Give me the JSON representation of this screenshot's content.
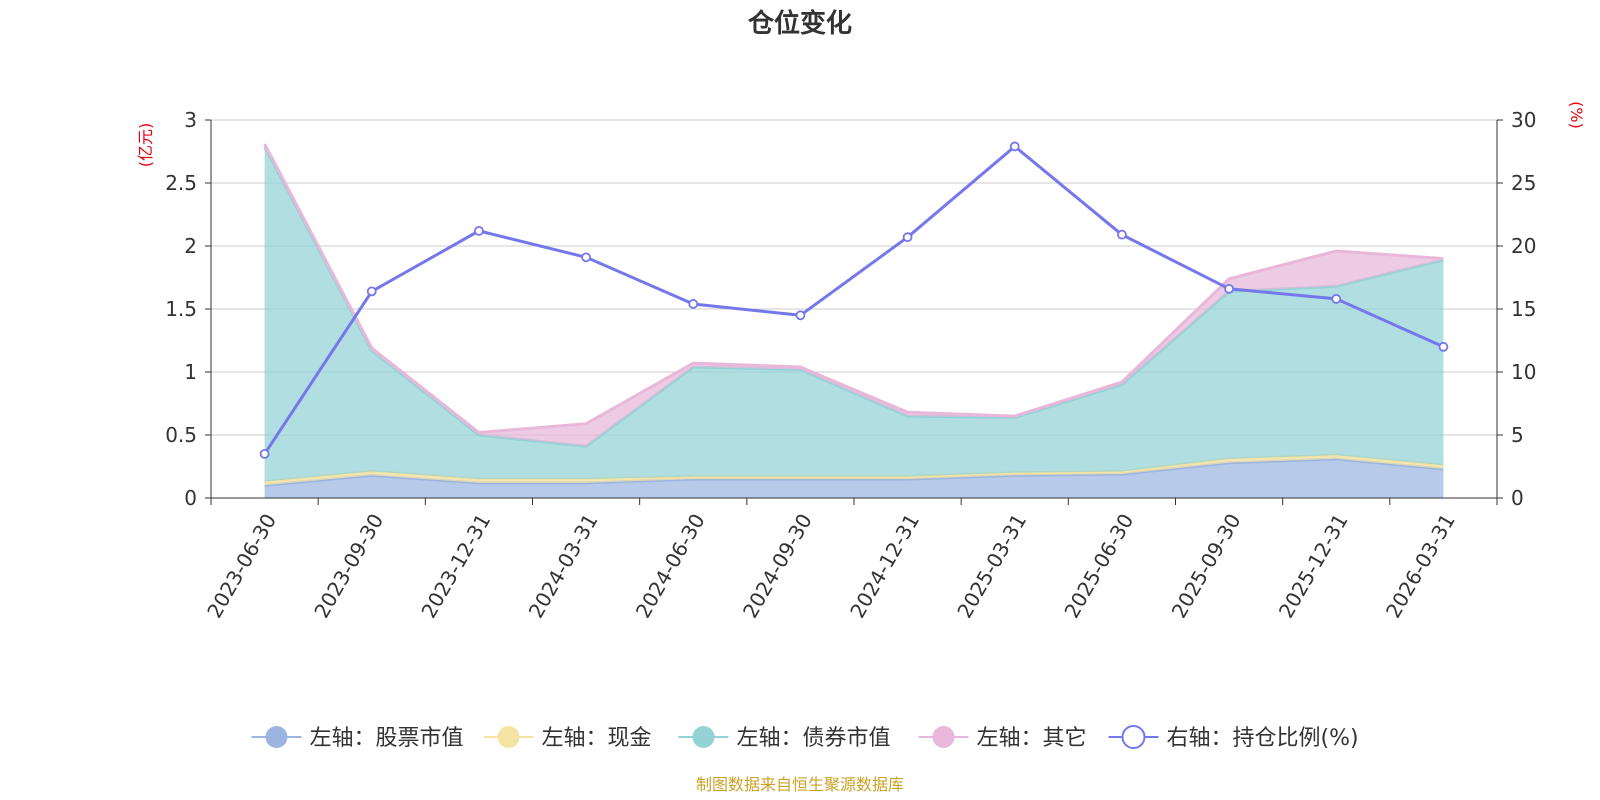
{
  "chart_data": {
    "type": "area",
    "title": "仓位变化",
    "left_axis_unit": "(亿元)",
    "right_axis_unit": "(%)",
    "categories": [
      "2023-06-30",
      "2023-09-30",
      "2023-12-31",
      "2024-03-31",
      "2024-06-30",
      "2024-09-30",
      "2024-12-31",
      "2025-03-31",
      "2025-06-30",
      "2025-09-30",
      "2025-12-31",
      "2026-03-31"
    ],
    "left_ylim": [
      0,
      3
    ],
    "left_ticks": [
      "0",
      "0.5",
      "1",
      "1.5",
      "2",
      "2.5",
      "3"
    ],
    "right_ylim": [
      0,
      30
    ],
    "right_ticks": [
      "0",
      "5",
      "10",
      "15",
      "20",
      "25",
      "30"
    ],
    "stacked": true,
    "series": [
      {
        "name": "左轴：股票市值",
        "axis": "left",
        "color": "#9bb5e0",
        "values": [
          0.1,
          0.18,
          0.12,
          0.12,
          0.15,
          0.15,
          0.15,
          0.18,
          0.19,
          0.28,
          0.31,
          0.23
        ]
      },
      {
        "name": "左轴：现金",
        "axis": "left",
        "color": "#f5e3a3",
        "values": [
          0.03,
          0.03,
          0.03,
          0.03,
          0.02,
          0.02,
          0.02,
          0.02,
          0.02,
          0.03,
          0.03,
          0.03
        ]
      },
      {
        "name": "左轴：债券市值",
        "axis": "left",
        "color": "#93d3d6",
        "values": [
          2.66,
          0.96,
          0.35,
          0.26,
          0.87,
          0.85,
          0.48,
          0.44,
          0.69,
          1.33,
          1.34,
          1.63
        ]
      },
      {
        "name": "左轴：其它",
        "axis": "left",
        "color": "#e8b7d9",
        "values": [
          0.02,
          0.02,
          0.02,
          0.18,
          0.03,
          0.02,
          0.03,
          0.01,
          0.02,
          0.1,
          0.28,
          0.01
        ]
      },
      {
        "name": "右轴：持仓比例(%)",
        "axis": "right",
        "color": "#7578ea",
        "values": [
          3.5,
          16.4,
          21.2,
          19.1,
          15.4,
          14.5,
          20.7,
          27.9,
          20.9,
          16.6,
          15.8,
          12.0
        ]
      }
    ],
    "legend_position": "bottom"
  },
  "footer": {
    "source": "制图数据来自恒生聚源数据库"
  }
}
